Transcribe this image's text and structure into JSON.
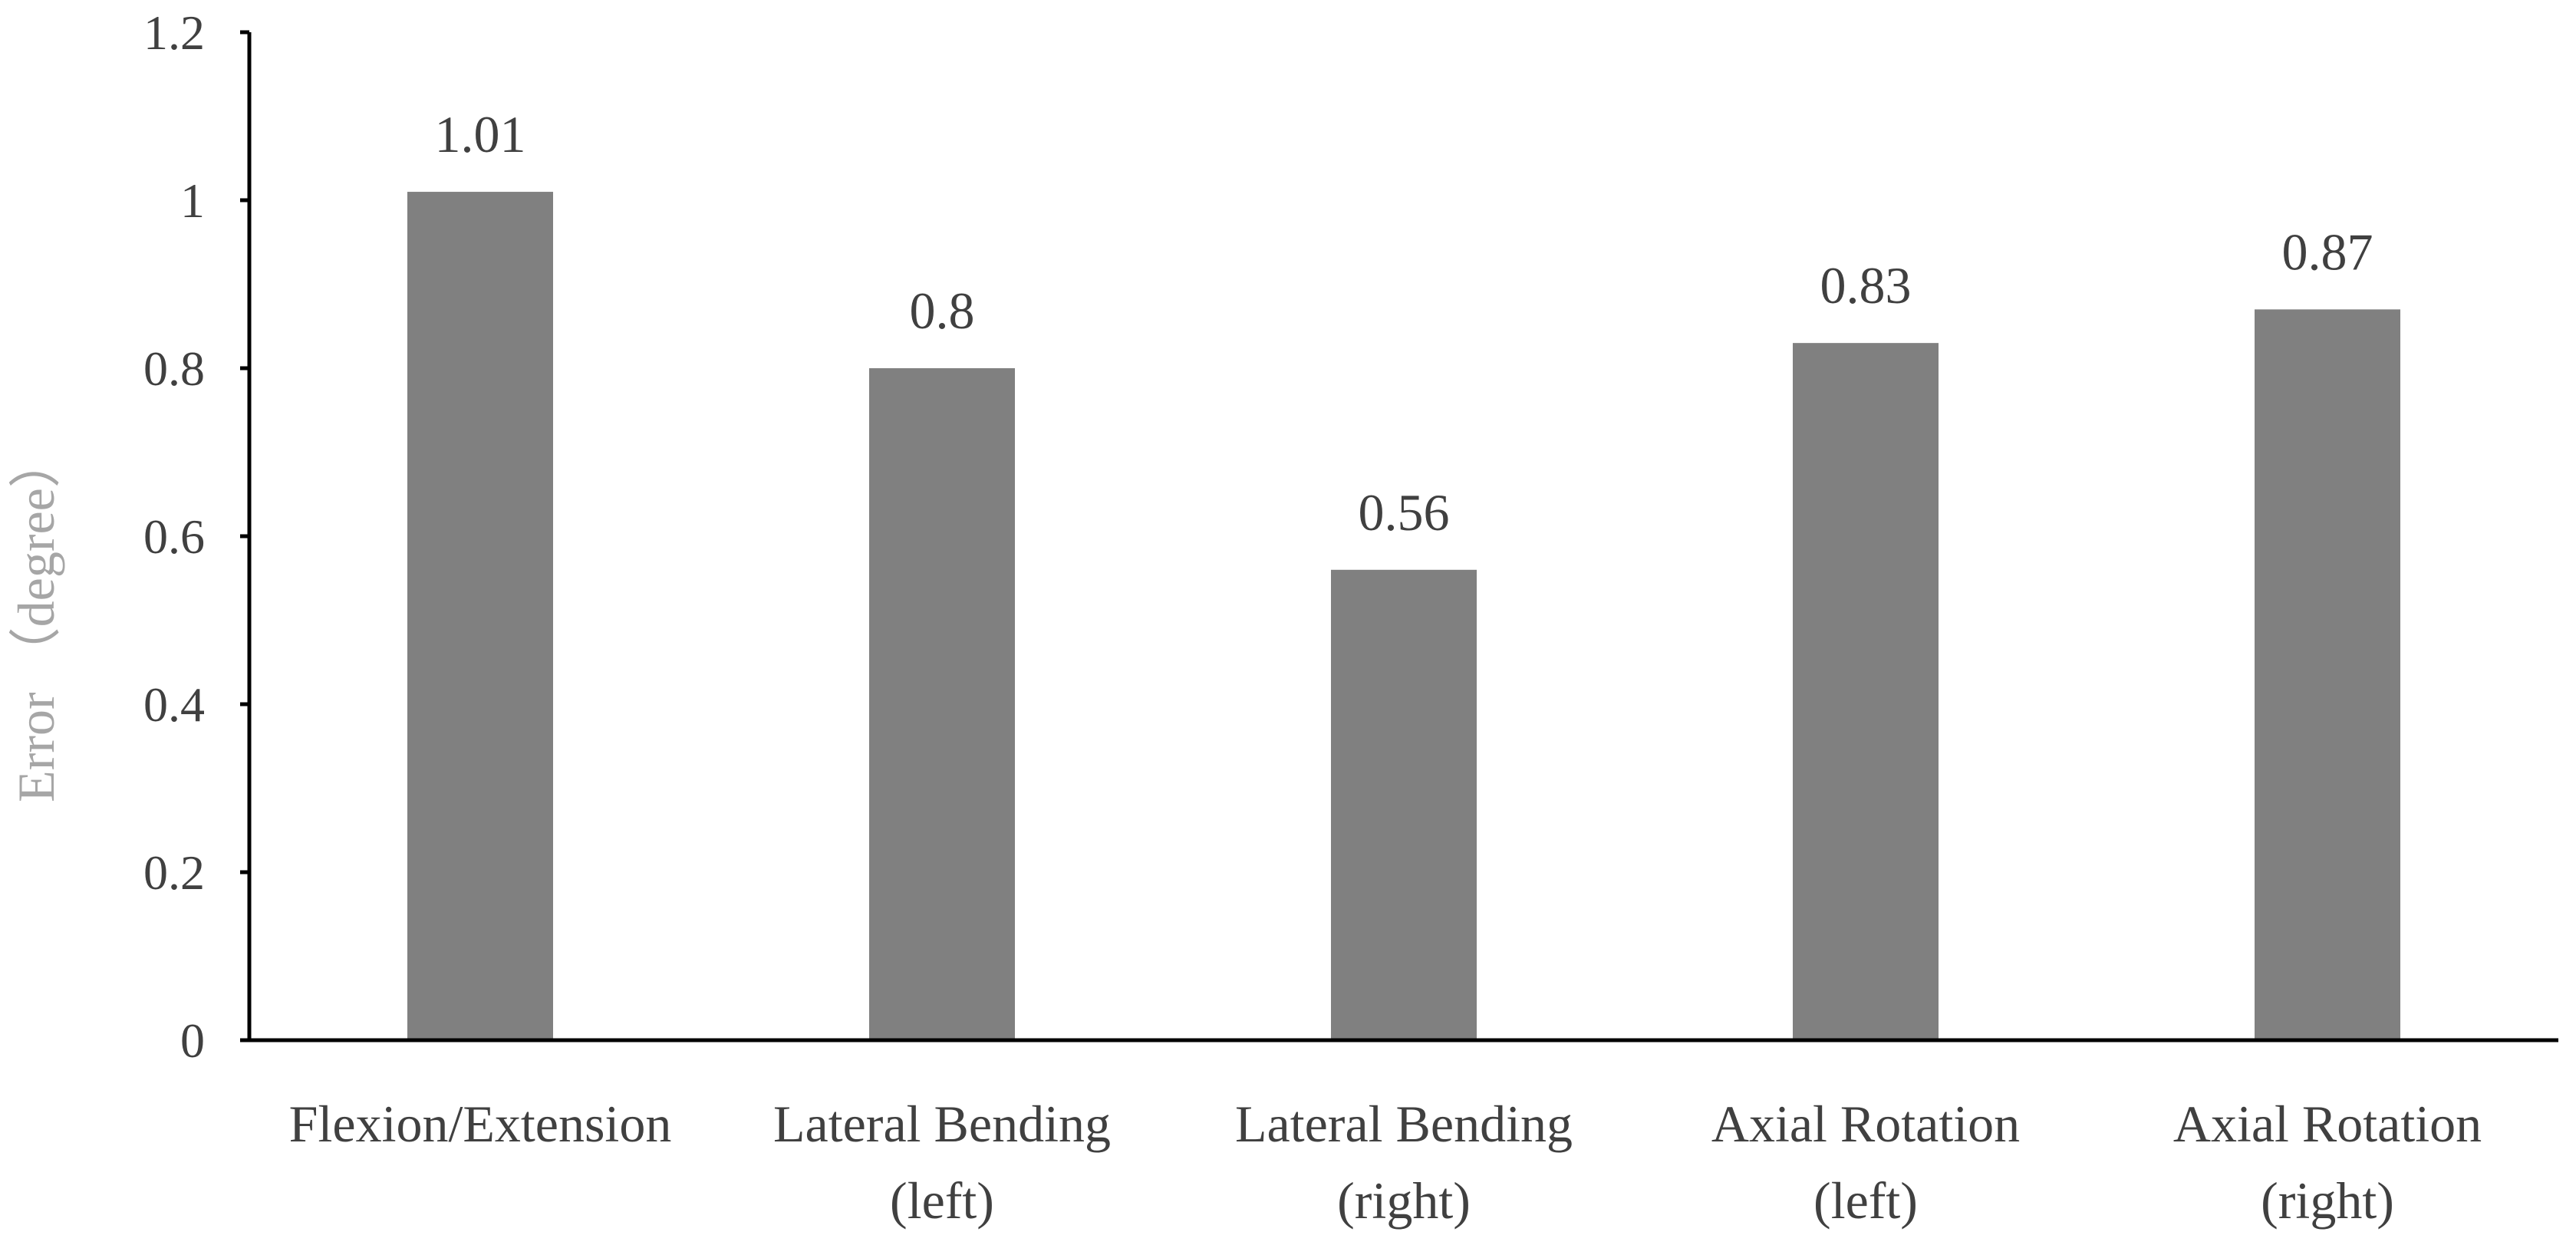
{
  "chart_data": {
    "type": "bar",
    "title": "",
    "xlabel": "",
    "ylabel": "Error （degree）",
    "ylim": [
      0,
      1.2
    ],
    "yticks": [
      "0",
      "0.2",
      "0.4",
      "0.6",
      "0.8",
      "1",
      "1.2"
    ],
    "grid": false,
    "bar_color": "#808080",
    "categories": [
      [
        "Flexion/Extension"
      ],
      [
        "Lateral Bending",
        "(left)"
      ],
      [
        "Lateral Bending",
        "(right)"
      ],
      [
        "Axial Rotation",
        "(left)"
      ],
      [
        "Axial Rotation",
        "(right)"
      ]
    ],
    "values": [
      1.01,
      0.8,
      0.56,
      0.83,
      0.87
    ],
    "data_labels": [
      "1.01",
      "0.8",
      "0.56",
      "0.83",
      "0.87"
    ]
  }
}
